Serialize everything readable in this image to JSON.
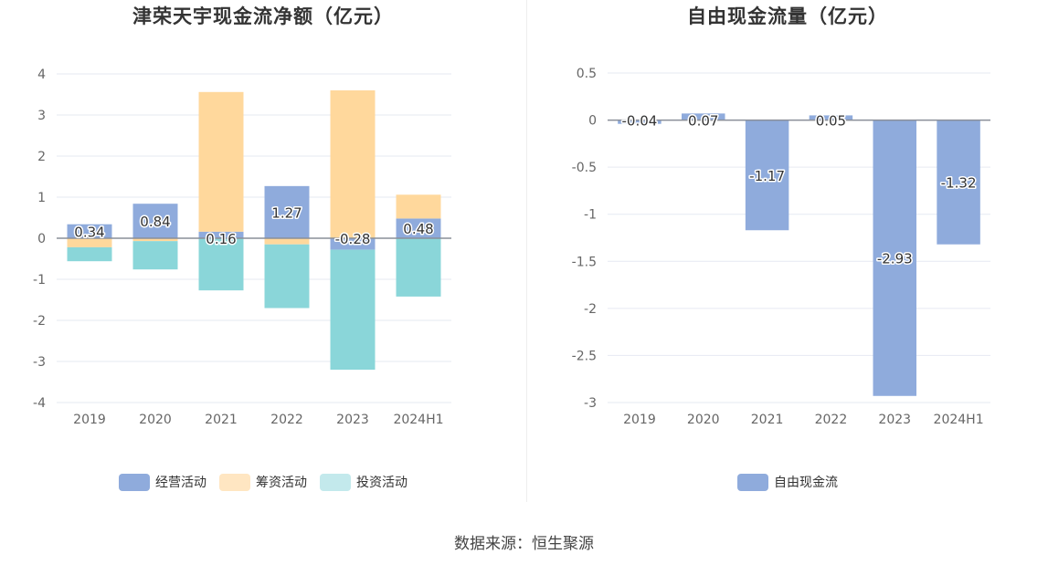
{
  "source": "数据来源：恒生聚源",
  "chart_data": [
    {
      "type": "bar",
      "stacked": true,
      "title": "津荣天宇现金流净额（亿元）",
      "categories": [
        "2019",
        "2020",
        "2021",
        "2022",
        "2023",
        "2024H1"
      ],
      "ylim": [
        -4,
        4
      ],
      "yticks": [
        4,
        3,
        2,
        1,
        0,
        -1,
        -2,
        -3,
        -4
      ],
      "grid": true,
      "legend_position": "bottom-center",
      "series": [
        {
          "name": "经营活动",
          "color": "#8fabdc",
          "values": [
            0.34,
            0.84,
            0.16,
            1.27,
            -0.28,
            0.48
          ],
          "labels": [
            "0.34",
            "0.84",
            "0.16",
            "1.27",
            "-0.28",
            "0.48"
          ]
        },
        {
          "name": "筹资活动",
          "color": "#ffd89c",
          "values": [
            -0.22,
            -0.07,
            3.4,
            -0.15,
            3.6,
            0.58
          ]
        },
        {
          "name": "投资活动",
          "color": "#8ad6d9",
          "values": [
            -0.34,
            -0.69,
            -1.27,
            -1.55,
            -2.92,
            -1.42
          ]
        }
      ],
      "legend": [
        {
          "name": "经营活动",
          "color": "#8fabdc"
        },
        {
          "name": "筹资活动",
          "color": "#ffe6c2"
        },
        {
          "name": "投资活动",
          "color": "#c3e9ec"
        }
      ]
    },
    {
      "type": "bar",
      "title": "自由现金流量（亿元）",
      "categories": [
        "2019",
        "2020",
        "2021",
        "2022",
        "2023",
        "2024H1"
      ],
      "ylim": [
        -3,
        0.5
      ],
      "yticks": [
        "0.5",
        "0",
        "-0.5",
        "-1",
        "-1.5",
        "-2",
        "-2.5",
        "-3"
      ],
      "grid": true,
      "legend_position": "bottom-center",
      "series": [
        {
          "name": "自由现金流",
          "color": "#8fabdc",
          "values": [
            -0.04,
            0.07,
            -1.17,
            0.05,
            -2.93,
            -1.32
          ],
          "labels": [
            "-0.04",
            "0.07",
            "-1.17",
            "0.05",
            "-2.93",
            "-1.32"
          ]
        }
      ],
      "legend": [
        {
          "name": "自由现金流",
          "color": "#8fabdc"
        }
      ]
    }
  ]
}
